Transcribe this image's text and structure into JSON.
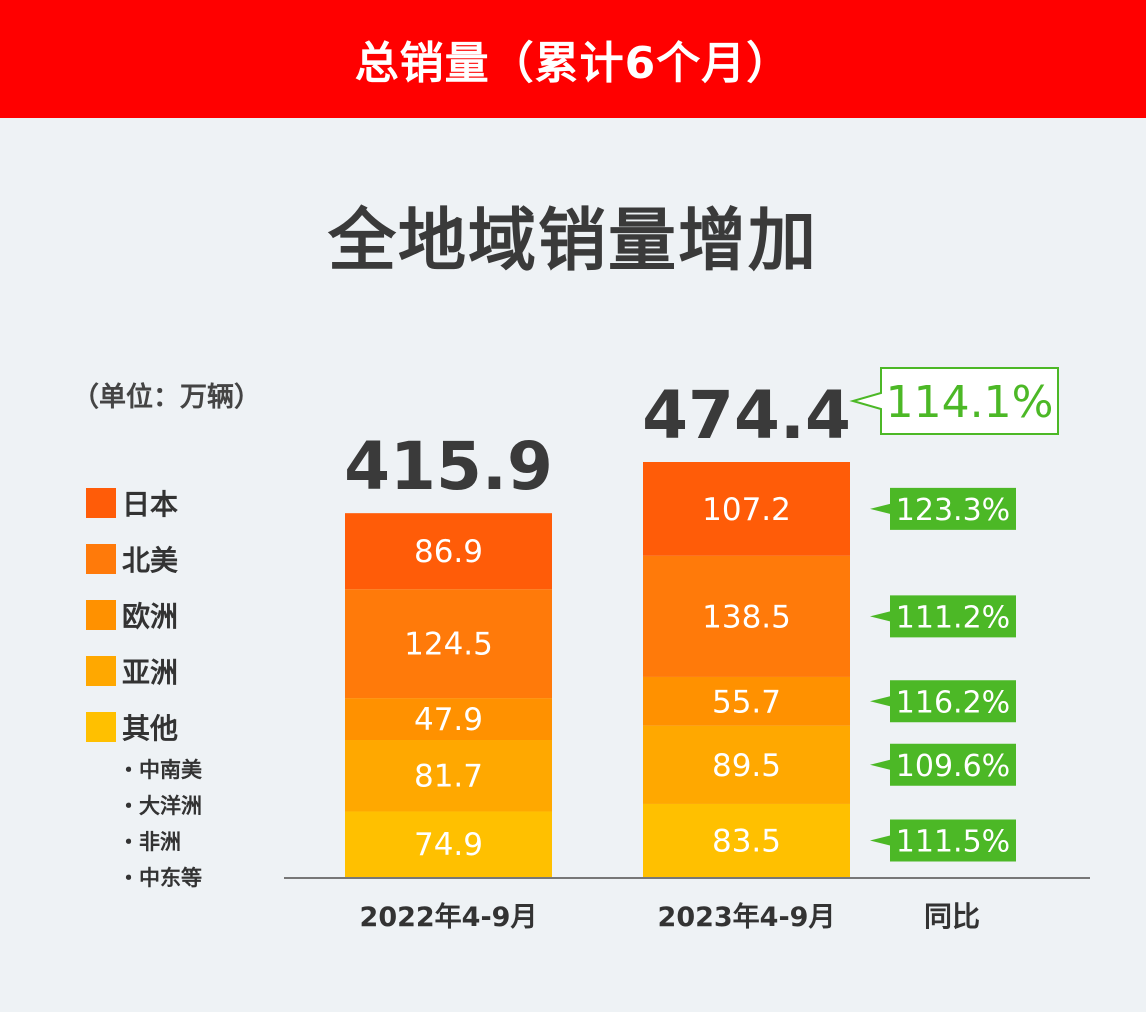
{
  "banner": {
    "title": "总销量（累计6个月）"
  },
  "headline": "全地域销量增加",
  "unit_label": "（单位：万辆）",
  "colors": {
    "日本": "#ff5c08",
    "北美": "#ff7a0a",
    "欧洲": "#ff9100",
    "亚洲": "#ffa800",
    "其他": "#ffc000",
    "growth_green": "#4cb826",
    "axis": "#777777"
  },
  "legend": [
    {
      "name": "日本",
      "color_key": "日本"
    },
    {
      "name": "北美",
      "color_key": "北美"
    },
    {
      "name": "欧洲",
      "color_key": "欧洲"
    },
    {
      "name": "亚洲",
      "color_key": "亚洲"
    },
    {
      "name": "其他",
      "color_key": "其他"
    }
  ],
  "other_breakdown": [
    "・中南美",
    "・大洋洲",
    "・非洲",
    "・中东等"
  ],
  "chart_data": {
    "type": "bar",
    "stacked": true,
    "categories": [
      "2022年4-9月",
      "2023年4-9月"
    ],
    "extra_column_label": "同比",
    "series": [
      {
        "name": "其他",
        "values": [
          74.9,
          83.5
        ],
        "yoy": "111.5%"
      },
      {
        "name": "亚洲",
        "values": [
          81.7,
          89.5
        ],
        "yoy": "109.6%"
      },
      {
        "name": "欧洲",
        "values": [
          47.9,
          55.7
        ],
        "yoy": "116.2%"
      },
      {
        "name": "北美",
        "values": [
          124.5,
          138.5
        ],
        "yoy": "111.2%"
      },
      {
        "name": "日本",
        "values": [
          86.9,
          107.2
        ],
        "yoy": "123.3%"
      }
    ],
    "totals": [
      "415.9",
      "474.4"
    ],
    "total_yoy": "114.1%",
    "grid": false,
    "legend_position": "left"
  }
}
